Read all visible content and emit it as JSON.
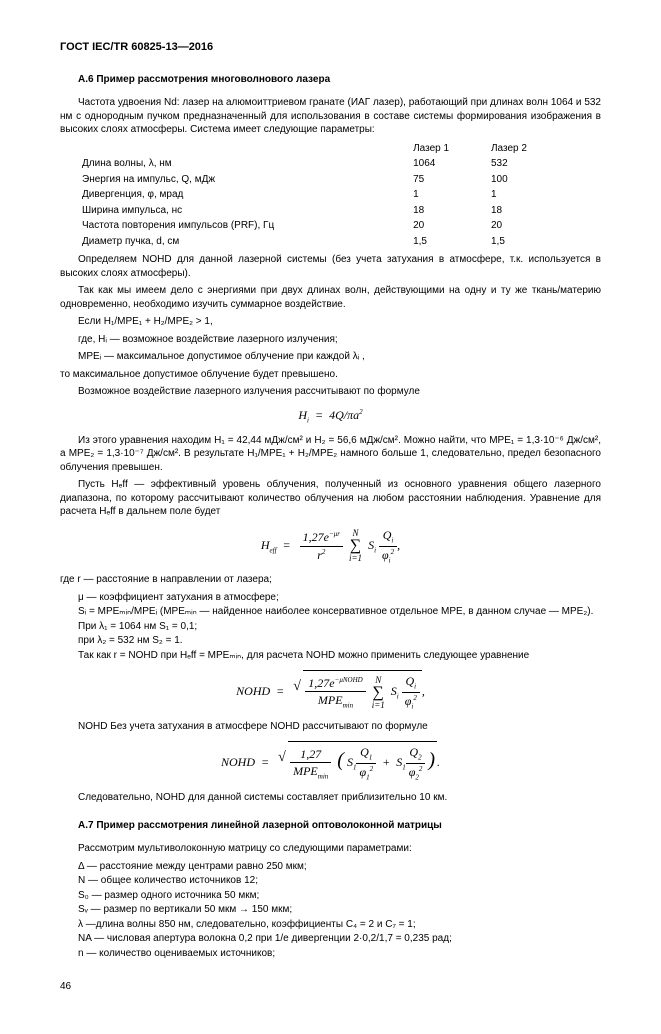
{
  "header": "ГОСТ IEC/TR 60825-13—2016",
  "section_a6": {
    "title": "А.6  Пример рассмотрения многоволнового лазера",
    "intro": "Частота удвоения Nd: лазер на алюмоиттриевом гранате (ИАГ лазер), работающий при длинах волн 1064 и 532 нм с однородным пучком предназначенный для использования в составе системы формирования изображения в высоких слоях атмосферы. Система имеет следующие параметры:",
    "table": {
      "col1": "Лазер 1",
      "col2": "Лазер 2",
      "rows": [
        {
          "p": "Длина волны, λ, нм",
          "v1": "1064",
          "v2": "532"
        },
        {
          "p": "Энергия на импульс, Q, мДж",
          "v1": "75",
          "v2": "100"
        },
        {
          "p": "Дивергенция, φ, мрад",
          "v1": "1",
          "v2": "1"
        },
        {
          "p": "Ширина импульса, нс",
          "v1": "18",
          "v2": "18"
        },
        {
          "p": "Частота повторения импульсов (PRF), Гц",
          "v1": "20",
          "v2": "20"
        },
        {
          "p": "Диаметр пучка, d, см",
          "v1": "1,5",
          "v2": "1,5"
        }
      ]
    },
    "p1": "Определяем NOHD для данной лазерной системы (без учета затухания в атмосфере, т.к. используется в высоких слоях атмосферы).",
    "p2": "Так как мы имеем дело с энергиями при двух длинах волн, действующими на одну и ту же ткань/материю одновременно, необходимо изучить суммарное воздействие.",
    "p3": "Если H₁/MPE₁ + H₂/MPE₂ > 1,",
    "p4": "где, Hᵢ — возможное воздействие лазерного излучения;",
    "p5": "MPEᵢ — максимальное допустимое облучение при каждой λᵢ ,",
    "p6": "то максимальное допустимое облучение будет превышено.",
    "p7": "Возможное воздействие лазерного излучения рассчитывают по формуле",
    "formula1": "Hᵢ  =  4Q/πa²",
    "p8": "Из этого уравнения находим H₁ = 42,44 мДж/см² и H₂ = 56,6 мДж/см². Можно найти, что MPE₁ = 1,3·10⁻⁶ Дж/см², а MPE₂ = 1,3·10⁻⁷ Дж/см². В результате H₁/MPE₁ + H₂/MPE₂ намного больше 1, следовательно, предел безопасного облучения превышен.",
    "p9": "Пусть Hₑff — эффективный уровень облучения, полученный из основного уравнения общего лазерного диапазона, по которому рассчитывают количество облучения на любом расстоянии наблюдения. Уравнение для расчета Hₑff в дальнем поле будет",
    "p10": "где r — расстояние в направлении от лазера;",
    "p11": "μ — коэффициент затухания в атмосфере;",
    "p12": "Sᵢ = MPEₘᵢₙ/MPEᵢ (MPEₘᵢₙ — найденное наиболее консервативное отдельное MPE, в данном случае — MPE₂).",
    "p13": "При λ₁ = 1064 нм     S₁ = 0,1;",
    "p14": "при λ₂ = 532 нм      S₂ = 1.",
    "p15": "Так как r = NOHD при Hₑff = MPEₘᵢₙ, для расчета NOHD можно применить следующее уравнение",
    "p16": "NOHD Без учета затухания в атмосфере NOHD рассчитывают по формуле",
    "p17": "Следовательно, NOHD для данной системы составляет приблизительно 10 км."
  },
  "section_a7": {
    "title": "А.7  Пример рассмотрения линейной лазерной оптоволоконной матрицы",
    "intro": "Рассмотрим мультиволоконную матрицу со следующими параметрами:",
    "params": [
      "Δ  — расстояние между центрами равно 250 мкм;",
      "N  — общее количество источников 12;",
      "S₀  — размер одного источника 50 мкм;",
      "Sᵥ  — размер по вертикали 50 мкм → 150 мкм;",
      "λ  —длина волны 850 нм, следовательно, коэффициенты C₄ = 2 и C₇ = 1;",
      "NA — числовая апертура волокна 0,2 при 1/e дивергенции 2·0,2/1,7 = 0,235 рад;",
      "n  — количество оцениваемых источников;"
    ]
  },
  "pagenum": "46"
}
